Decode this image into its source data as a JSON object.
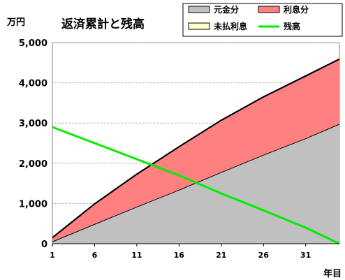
{
  "chart_data": {
    "type": "area",
    "title": "返済累計と残高",
    "yunit": "万円",
    "xlabel": "年目",
    "ylabel": "",
    "xlim": [
      1,
      35
    ],
    "ylim": [
      0,
      5000
    ],
    "x_ticks": [
      1,
      6,
      11,
      16,
      21,
      26,
      31
    ],
    "y_ticks": [
      {
        "value": 0,
        "label": "0"
      },
      {
        "value": 1000,
        "label": "1,000"
      },
      {
        "value": 2000,
        "label": "2,000"
      },
      {
        "value": 3000,
        "label": "3,000"
      },
      {
        "value": 4000,
        "label": "4,000"
      },
      {
        "value": 5000,
        "label": "5,000"
      }
    ],
    "grid": true,
    "legend_position": "top-right",
    "x": [
      1,
      6,
      11,
      16,
      21,
      26,
      31,
      35
    ],
    "series": [
      {
        "name": "元金分",
        "kind": "stacked-area",
        "color": "#c0c0c0",
        "values": [
          55,
          490,
          920,
          1340,
          1780,
          2210,
          2620,
          2980
        ]
      },
      {
        "name": "利息分",
        "kind": "stacked-area",
        "color": "#ff8080",
        "values": [
          95,
          500,
          810,
          1070,
          1290,
          1440,
          1550,
          1610
        ]
      },
      {
        "name": "未払利息",
        "kind": "stacked-area",
        "color": "#ffffcc",
        "values": [
          0,
          0,
          0,
          0,
          0,
          0,
          0,
          0
        ]
      },
      {
        "name": "残高",
        "kind": "line",
        "color": "#00ee00",
        "values": [
          2900,
          2500,
          2100,
          1700,
          1250,
          830,
          400,
          0
        ]
      }
    ]
  }
}
